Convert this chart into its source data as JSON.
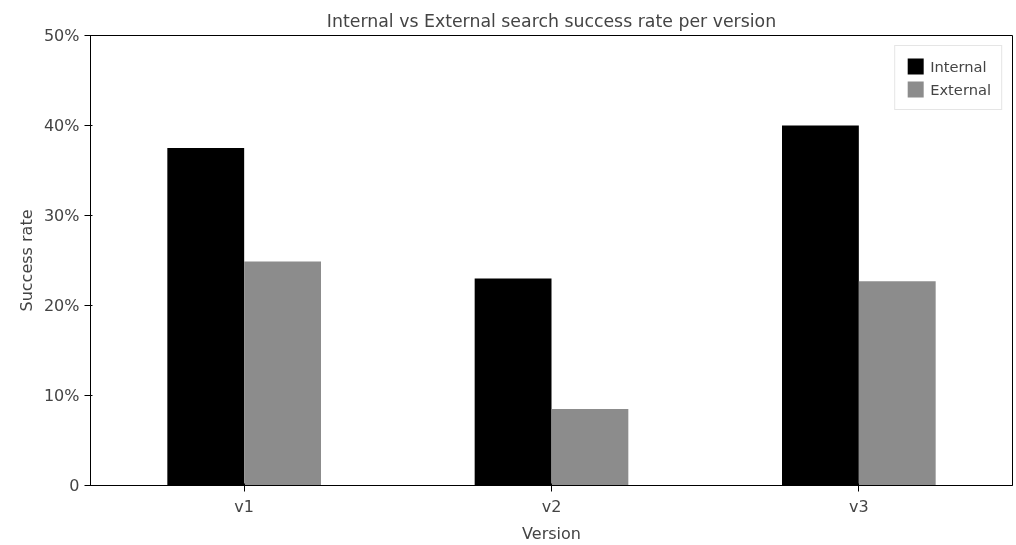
{
  "chart_data": {
    "type": "bar",
    "title": "Internal vs External search success rate per version",
    "xlabel": "Version",
    "ylabel": "Success rate",
    "categories": [
      "v1",
      "v2",
      "v3"
    ],
    "series": [
      {
        "name": "Internal",
        "color": "#000000",
        "values": [
          37.5,
          23.0,
          40.0
        ]
      },
      {
        "name": "External",
        "color": "#8c8c8c",
        "values": [
          24.9,
          8.5,
          22.7
        ]
      }
    ],
    "ylim": [
      0,
      50
    ],
    "yticks": [
      0,
      {
        "value": 10,
        "label": "10%"
      },
      {
        "value": 20,
        "label": "20%"
      },
      {
        "value": 30,
        "label": "30%"
      },
      {
        "value": 40,
        "label": "40%"
      },
      {
        "value": 50,
        "label": "50%"
      }
    ],
    "grid": false,
    "legend": "top right"
  }
}
